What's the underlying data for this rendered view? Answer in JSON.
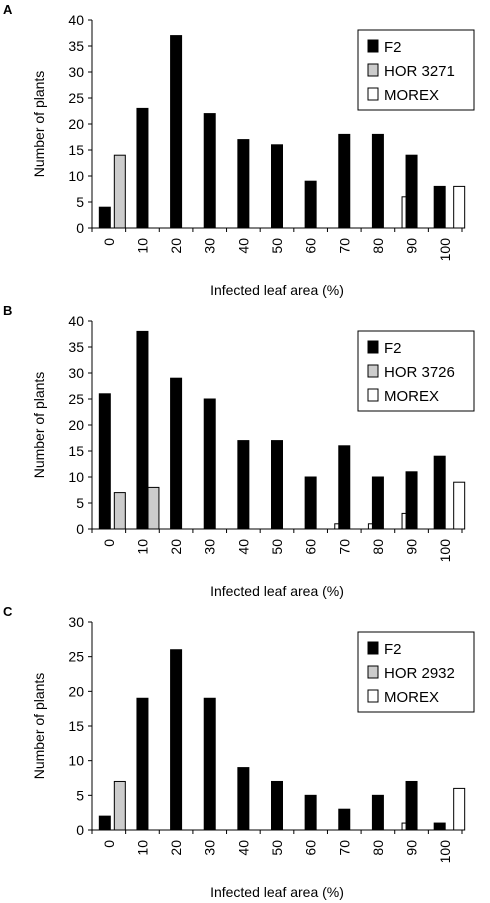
{
  "chart_data": [
    {
      "panel_label": "A",
      "type": "bar",
      "categories": [
        "0",
        "10",
        "20",
        "30",
        "40",
        "50",
        "60",
        "70",
        "80",
        "90",
        "100"
      ],
      "series": [
        {
          "name": "F2",
          "color": "#000000",
          "values": [
            4,
            23,
            37,
            22,
            17,
            16,
            9,
            18,
            18,
            14,
            8
          ]
        },
        {
          "name": "HOR 3271",
          "color": "#cccccc",
          "values": [
            14,
            0,
            0,
            0,
            0,
            0,
            0,
            0,
            0,
            0,
            0
          ]
        },
        {
          "name": "MOREX",
          "color": "#ffffff",
          "values": [
            0,
            0,
            0,
            0,
            0,
            0,
            0,
            0,
            0,
            6,
            8
          ]
        }
      ],
      "xlabel": "Infected leaf area (%)",
      "ylabel": "Number of plants",
      "ylim": [
        0,
        40
      ],
      "yticks": [
        0,
        5,
        10,
        15,
        20,
        25,
        30,
        35,
        40
      ],
      "legend_position": "top-right",
      "grid": false
    },
    {
      "panel_label": "B",
      "type": "bar",
      "categories": [
        "0",
        "10",
        "20",
        "30",
        "40",
        "50",
        "60",
        "70",
        "80",
        "90",
        "100"
      ],
      "series": [
        {
          "name": "F2",
          "color": "#000000",
          "values": [
            26,
            38,
            29,
            25,
            17,
            17,
            10,
            16,
            10,
            11,
            14
          ]
        },
        {
          "name": "HOR 3726",
          "color": "#cccccc",
          "values": [
            7,
            8,
            0,
            0,
            0,
            0,
            0,
            0,
            0,
            0,
            0
          ]
        },
        {
          "name": "MOREX",
          "color": "#ffffff",
          "values": [
            0,
            0,
            0,
            0,
            0,
            0,
            0,
            1,
            1,
            3,
            9
          ]
        }
      ],
      "xlabel": "Infected leaf area (%)",
      "ylabel": "Number of plants",
      "ylim": [
        0,
        40
      ],
      "yticks": [
        0,
        5,
        10,
        15,
        20,
        25,
        30,
        35,
        40
      ],
      "legend_position": "top-right",
      "grid": false
    },
    {
      "panel_label": "C",
      "type": "bar",
      "categories": [
        "0",
        "10",
        "20",
        "30",
        "40",
        "50",
        "60",
        "70",
        "80",
        "90",
        "100"
      ],
      "series": [
        {
          "name": "F2",
          "color": "#000000",
          "values": [
            2,
            19,
            26,
            19,
            9,
            7,
            5,
            3,
            5,
            7,
            1
          ]
        },
        {
          "name": "HOR 2932",
          "color": "#cccccc",
          "values": [
            7,
            0,
            0,
            0,
            0,
            0,
            0,
            0,
            0,
            0,
            0
          ]
        },
        {
          "name": "MOREX",
          "color": "#ffffff",
          "values": [
            0,
            0,
            0,
            0,
            0,
            0,
            0,
            0,
            0,
            1,
            6
          ]
        }
      ],
      "xlabel": "Infected leaf area (%)",
      "ylabel": "Number of plants",
      "ylim": [
        0,
        30
      ],
      "yticks": [
        0,
        5,
        10,
        15,
        20,
        25,
        30
      ],
      "legend_position": "top-right",
      "grid": false
    }
  ]
}
